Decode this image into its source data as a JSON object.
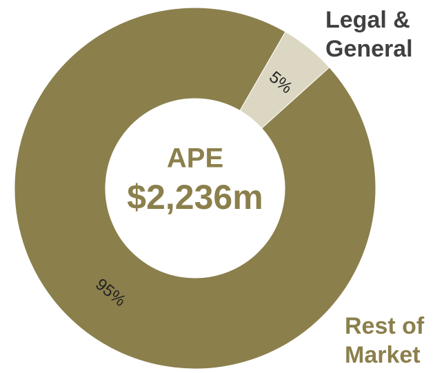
{
  "chart_data": {
    "type": "donut",
    "categories": [
      "Legal & General",
      "Rest of Market"
    ],
    "values": [
      5,
      95
    ],
    "value_labels": [
      "5%",
      "95%"
    ],
    "colors": [
      "#dbd7c2",
      "#8b7f4c"
    ],
    "start_angle": 30,
    "center_label": "APE",
    "center_value": "$2,236m"
  }
}
